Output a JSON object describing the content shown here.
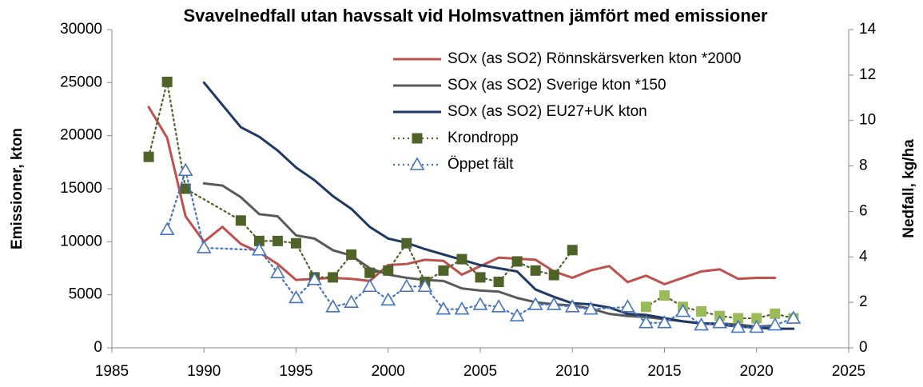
{
  "chart_data": {
    "type": "line",
    "title": "Svavelnedfall utan havssalt vid Holmsvattnen jämfört med emissioner",
    "ylabel": "Emissioner, kton",
    "y2label": "Nedfall, kg/ha",
    "xlim": [
      1985,
      2025
    ],
    "xticks": [
      1985,
      1990,
      1995,
      2000,
      2005,
      2010,
      2015,
      2020,
      2025
    ],
    "ylim": [
      0,
      30000
    ],
    "yticks": [
      0,
      5000,
      10000,
      15000,
      20000,
      25000,
      30000
    ],
    "y2lim": [
      0,
      14
    ],
    "y2ticks": [
      0,
      2,
      4,
      6,
      8,
      10,
      12,
      14
    ],
    "legend": "top-right",
    "series": [
      {
        "name": "SOx (as SO2) Rönnskärsverken kton *2000",
        "color": "#c0504d",
        "axis": "y",
        "x": [
          1987,
          1988,
          1989,
          1990,
          1991,
          1992,
          1993,
          1994,
          1995,
          1996,
          1997,
          1998,
          1999,
          2000,
          2001,
          2002,
          2003,
          2004,
          2005,
          2006,
          2007,
          2008,
          2009,
          2010,
          2011,
          2012,
          2013,
          2014,
          2015,
          2016,
          2017,
          2018,
          2019,
          2020,
          2021
        ],
        "values": [
          22700,
          19800,
          12400,
          10000,
          11400,
          9800,
          9000,
          7900,
          6400,
          6500,
          6600,
          6500,
          6300,
          7800,
          7900,
          8300,
          8200,
          6900,
          7700,
          8500,
          8400,
          8300,
          7200,
          6600,
          7300,
          7700,
          6200,
          6800,
          6000,
          6600,
          7200,
          7400,
          6500,
          6600,
          6600
        ]
      },
      {
        "name": "SOx (as SO2) Sverige kton *150",
        "color": "#595959",
        "axis": "y",
        "x": [
          1990,
          1991,
          1992,
          1993,
          1994,
          1995,
          1996,
          1997,
          1998,
          1999,
          2000,
          2001,
          2002,
          2003,
          2004,
          2005,
          2006,
          2007,
          2008,
          2009,
          2010,
          2011,
          2012,
          2013,
          2014,
          2015,
          2016,
          2017,
          2018,
          2019,
          2020,
          2021
        ],
        "values": [
          15500,
          15300,
          14200,
          12600,
          12400,
          10600,
          10300,
          9200,
          8700,
          7500,
          6900,
          6600,
          6400,
          6300,
          5600,
          5400,
          5300,
          4700,
          4300,
          4100,
          4000,
          3700,
          3200,
          3000,
          2900,
          2700,
          2500,
          2300,
          2300,
          2200,
          2000,
          2100
        ]
      },
      {
        "name": "SOx (as SO2) EU27+UK kton",
        "color": "#1f3864",
        "axis": "y",
        "x": [
          1990,
          1991,
          1992,
          1993,
          1994,
          1995,
          1996,
          1997,
          1998,
          1999,
          2000,
          2001,
          2002,
          2003,
          2004,
          2005,
          2006,
          2007,
          2008,
          2009,
          2010,
          2011,
          2012,
          2013,
          2014,
          2015,
          2016,
          2017,
          2018,
          2019,
          2020,
          2021,
          2022
        ],
        "values": [
          25000,
          22900,
          20800,
          19900,
          18600,
          17000,
          15800,
          14300,
          13100,
          11400,
          10300,
          9900,
          9300,
          8800,
          8300,
          7800,
          7500,
          7200,
          5500,
          4800,
          4200,
          4100,
          3800,
          3200,
          3100,
          2800,
          2500,
          2300,
          2200,
          2000,
          1900,
          1800,
          1800
        ]
      },
      {
        "name": "Krondropp",
        "color": "#4f6228",
        "axis": "y2",
        "marker": "square",
        "dash": true,
        "x": [
          1987,
          1988,
          1989,
          1992,
          1993,
          1994,
          1995,
          1996,
          1997,
          1998,
          1999,
          2000,
          2001,
          2002,
          2003,
          2004,
          2005,
          2006,
          2007,
          2008,
          2009,
          2010,
          2012,
          2014,
          2015,
          2016,
          2017,
          2018,
          2019,
          2020,
          2021,
          2022
        ],
        "values": [
          8.4,
          11.7,
          7.0,
          5.6,
          4.7,
          4.7,
          4.6,
          3.1,
          3.1,
          4.1,
          3.3,
          3.4,
          4.6,
          2.9,
          3.4,
          3.9,
          3.1,
          2.9,
          3.8,
          3.4,
          3.2,
          4.3,
          null,
          1.8,
          2.3,
          1.8,
          1.6,
          1.4,
          1.3,
          1.3,
          1.5,
          1.3
        ],
        "marker_colors": [
          "#4f6228",
          "#4f6228",
          "#4f6228",
          "#4f6228",
          "#4f6228",
          "#4f6228",
          "#4f6228",
          "#4f6228",
          "#4f6228",
          "#4f6228",
          "#4f6228",
          "#4f6228",
          "#4f6228",
          "#4f6228",
          "#4f6228",
          "#4f6228",
          "#4f6228",
          "#4f6228",
          "#4f6228",
          "#4f6228",
          "#4f6228",
          "#4f6228",
          "#4f6228",
          "#9bbb59",
          "#9bbb59",
          "#9bbb59",
          "#9bbb59",
          "#9bbb59",
          "#9bbb59",
          "#9bbb59",
          "#9bbb59",
          "#9bbb59"
        ]
      },
      {
        "name": "Öppet fält",
        "color": "#4472c4",
        "axis": "y2",
        "marker": "triangle",
        "dash": true,
        "x": [
          1988,
          1989,
          1990,
          1993,
          1994,
          1995,
          1996,
          1997,
          1998,
          1999,
          2000,
          2001,
          2002,
          2003,
          2004,
          2005,
          2006,
          2007,
          2008,
          2009,
          2010,
          2011,
          2013,
          2014,
          2015,
          2016,
          2017,
          2018,
          2019,
          2020,
          2021,
          2022
        ],
        "values": [
          5.2,
          7.8,
          4.4,
          4.3,
          3.3,
          2.2,
          3.0,
          1.8,
          2.0,
          2.7,
          2.1,
          2.7,
          2.7,
          1.7,
          1.7,
          1.9,
          1.8,
          1.4,
          1.9,
          1.9,
          1.8,
          1.7,
          1.8,
          1.1,
          1.1,
          1.6,
          1.0,
          1.1,
          0.9,
          0.9,
          1.0,
          1.3
        ]
      }
    ]
  }
}
